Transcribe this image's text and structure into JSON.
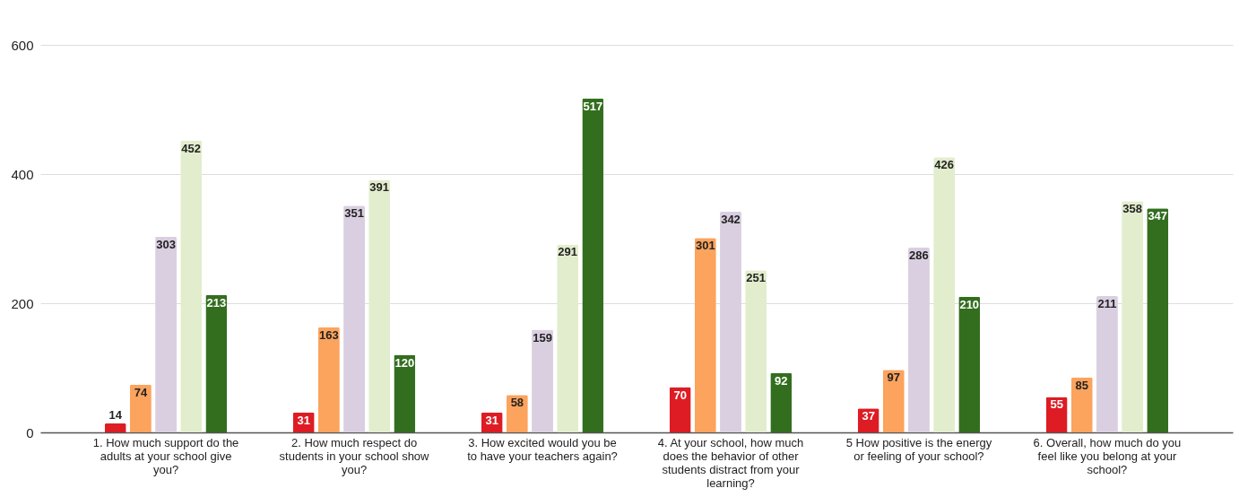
{
  "chart_data": {
    "type": "bar",
    "categories": [
      "1. How much support do the adults at your school give you?",
      "2. How much respect do students in your school show you?",
      "3. How excited would you be to have your teachers again?",
      "4. At your school, how much does the behavior of other students distract from your learning?",
      "5 How positive is the energy or feeling of your school?",
      "6. Overall, how much do you feel like you belong at your school?"
    ],
    "series": [
      {
        "color": "#dd1c24",
        "values": [
          14,
          31,
          31,
          70,
          37,
          55
        ]
      },
      {
        "color": "#fca35d",
        "values": [
          74,
          163,
          58,
          301,
          97,
          85
        ]
      },
      {
        "color": "#dacfe0",
        "values": [
          303,
          351,
          159,
          342,
          286,
          211
        ]
      },
      {
        "color": "#e2edcd",
        "values": [
          452,
          391,
          291,
          251,
          426,
          358
        ]
      },
      {
        "color": "#336e1f",
        "values": [
          213,
          120,
          517,
          92,
          210,
          347
        ]
      }
    ],
    "ylim": [
      0,
      600
    ],
    "yticks": [
      0,
      200,
      400,
      600
    ],
    "grid": "y",
    "data_labels": true
  }
}
